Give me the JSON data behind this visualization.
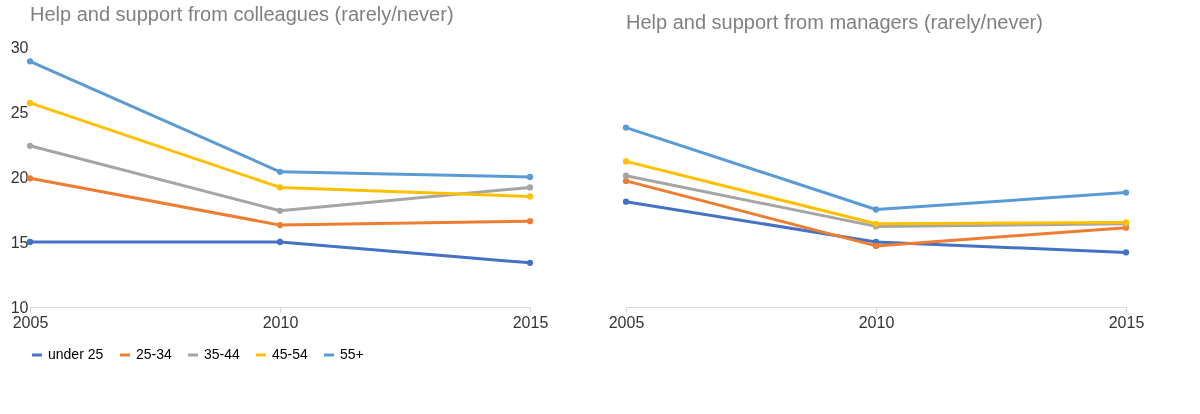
{
  "chart_data": [
    {
      "type": "line",
      "title": "Help and support from colleagues (rarely/never)",
      "x": [
        2005,
        2010,
        2015
      ],
      "xlim": [
        2005,
        2015
      ],
      "xticks": [
        2005,
        2010,
        2015
      ],
      "ylim": [
        10,
        30
      ],
      "yticks": [
        10,
        15,
        20,
        25,
        30
      ],
      "marker": "circle",
      "legend": "bottom",
      "series": [
        {
          "name": "under 25",
          "color": "#4472c4",
          "values": [
            15.0,
            15.0,
            13.4
          ]
        },
        {
          "name": "25-34",
          "color": "#ed7d31",
          "values": [
            19.9,
            16.3,
            16.6
          ]
        },
        {
          "name": "35-44",
          "color": "#a5a5a5",
          "values": [
            22.4,
            17.4,
            19.2
          ]
        },
        {
          "name": "45-54",
          "color": "#ffc000",
          "values": [
            25.7,
            19.2,
            18.5
          ]
        },
        {
          "name": "55+",
          "color": "#5b9bd5",
          "values": [
            28.9,
            20.4,
            20.0
          ]
        }
      ]
    },
    {
      "type": "line",
      "title": "Help and support from managers (rarely/never)",
      "x": [
        2005,
        2010,
        2015
      ],
      "xlim": [
        2005,
        2015
      ],
      "xticks": [
        2005,
        2010,
        2015
      ],
      "ylim": [
        10,
        30
      ],
      "yticks": [
        10,
        15,
        20,
        25,
        30
      ],
      "tick_labels": "x",
      "marker": "circle",
      "legend": "bottom",
      "series": [
        {
          "name": "under 25",
          "color": "#4472c4",
          "values": [
            18.1,
            15.0,
            14.2
          ]
        },
        {
          "name": "25-34",
          "color": "#ed7d31",
          "values": [
            19.7,
            14.7,
            16.1
          ]
        },
        {
          "name": "35-44",
          "color": "#a5a5a5",
          "values": [
            20.1,
            16.2,
            16.4
          ]
        },
        {
          "name": "45-54",
          "color": "#ffc000",
          "values": [
            21.2,
            16.4,
            16.5
          ]
        },
        {
          "name": "55+",
          "color": "#5b9bd5",
          "values": [
            23.8,
            17.5,
            18.8
          ]
        }
      ]
    }
  ]
}
